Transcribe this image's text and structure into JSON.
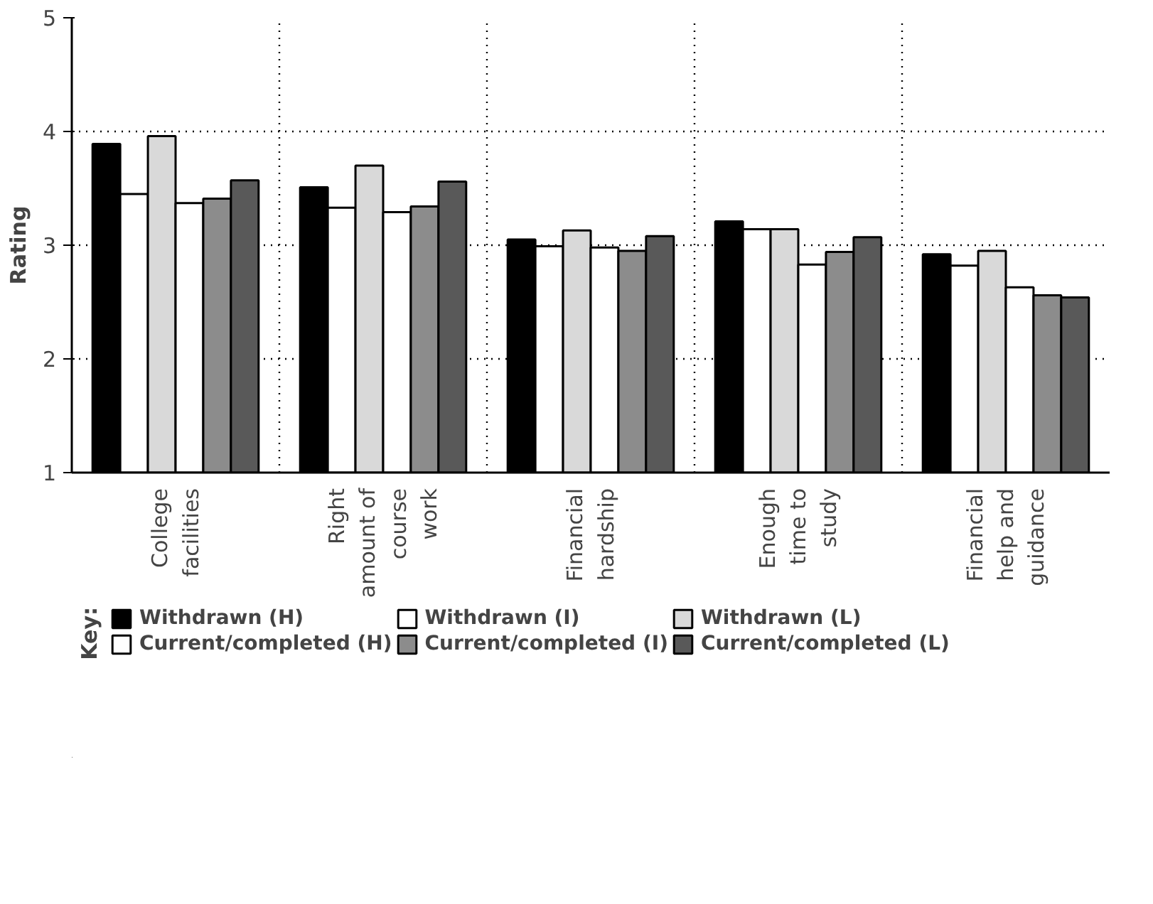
{
  "chart_data": {
    "type": "bar",
    "ylabel": "Rating",
    "legend_title": "Key:",
    "categories": [
      "College facilities",
      "Right amount of course work",
      "Financial hardship",
      "Enough time to study",
      "Financial help and guidance"
    ],
    "series": [
      {
        "name": "Withdrawn (H)",
        "color": "#000000",
        "values": [
          3.89,
          3.51,
          3.05,
          3.21,
          2.92
        ]
      },
      {
        "name": "Withdrawn (I)",
        "color": "#ffffff",
        "values": [
          3.45,
          3.33,
          2.99,
          3.14,
          2.82
        ]
      },
      {
        "name": "Withdrawn (L)",
        "color": "#d9d9d9",
        "values": [
          3.96,
          3.7,
          3.13,
          3.14,
          2.95
        ]
      },
      {
        "name": "Current/completed (H)",
        "color": "#ffffff",
        "values": [
          3.37,
          3.29,
          2.98,
          2.83,
          2.63
        ]
      },
      {
        "name": "Current/completed (I)",
        "color": "#8c8c8c",
        "values": [
          3.41,
          3.34,
          2.95,
          2.94,
          2.56
        ]
      },
      {
        "name": "Current/completed (L)",
        "color": "#595959",
        "values": [
          3.57,
          3.56,
          3.08,
          3.07,
          2.54
        ]
      }
    ],
    "ylim": [
      1,
      5
    ],
    "yticks": [
      1,
      2,
      3,
      4,
      5
    ],
    "grid": true,
    "legend": "bottom"
  }
}
